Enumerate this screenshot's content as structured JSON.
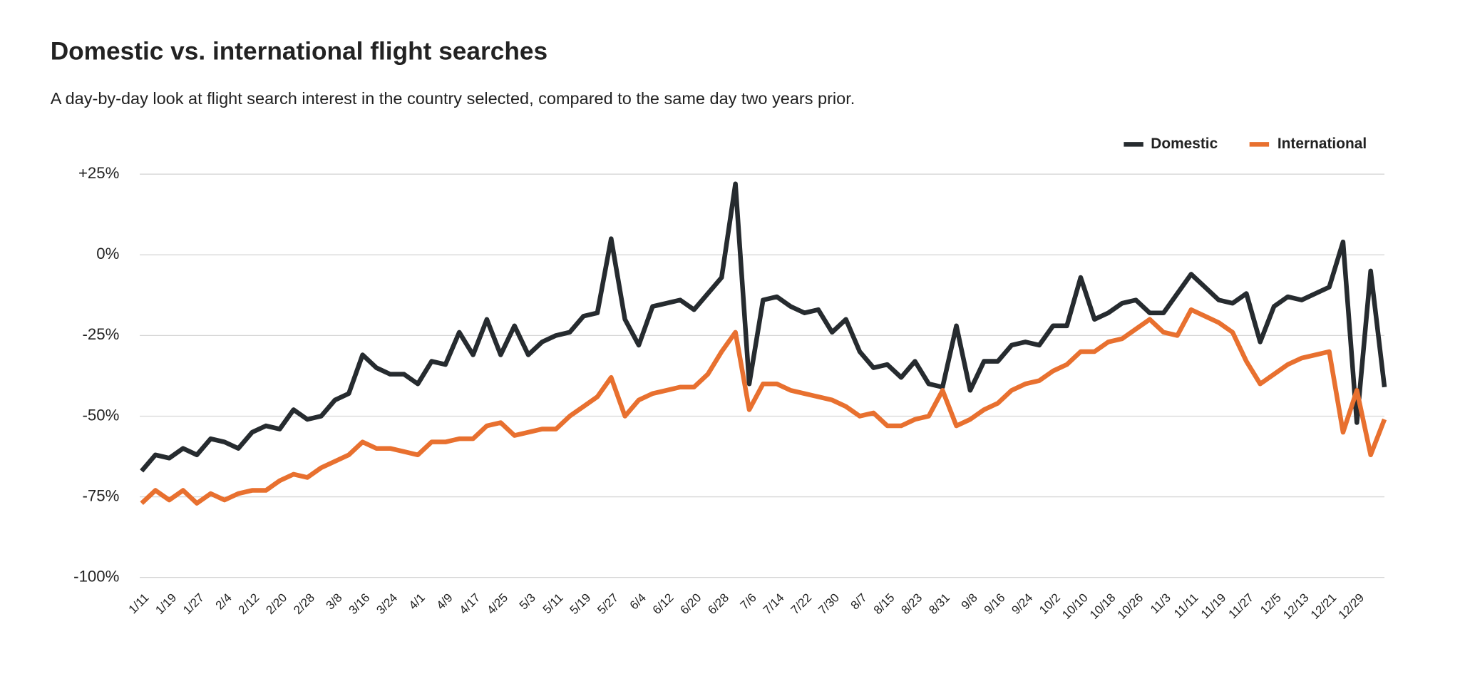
{
  "chart_data": {
    "type": "line",
    "title": "Domestic vs. international flight searches",
    "subtitle": "A day-by-day look at flight search interest in the country selected, compared to the same day two years prior.",
    "categories": [
      "1/11",
      null,
      "1/19",
      null,
      "1/27",
      null,
      "2/4",
      null,
      "2/12",
      null,
      "2/20",
      null,
      "2/28",
      null,
      "3/8",
      null,
      "3/16",
      null,
      "3/24",
      null,
      "4/1",
      null,
      "4/9",
      null,
      "4/17",
      null,
      "4/25",
      null,
      "5/3",
      null,
      "5/11",
      null,
      "5/19",
      null,
      "5/27",
      null,
      "6/4",
      null,
      "6/12",
      null,
      "6/20",
      null,
      "6/28",
      null,
      "7/6",
      null,
      "7/14",
      null,
      "7/22",
      null,
      "7/30",
      null,
      "8/7",
      null,
      "8/15",
      null,
      "8/23",
      null,
      "8/31",
      null,
      "9/8",
      null,
      "9/16",
      null,
      "9/24",
      null,
      "10/2",
      null,
      "10/10",
      null,
      "10/18",
      null,
      "10/26",
      null,
      "11/3",
      null,
      "11/11",
      null,
      "11/19",
      null,
      "11/27",
      null,
      "12/5",
      null,
      "12/13",
      null,
      "12/21",
      null,
      "12/29",
      null,
      null
    ],
    "series": [
      {
        "name": "Domestic",
        "color": "#262b2f",
        "values": [
          -67,
          -62,
          -63,
          -60,
          -62,
          -57,
          -58,
          -60,
          -55,
          -53,
          -54,
          -48,
          -51,
          -50,
          -45,
          -43,
          -31,
          -35,
          -37,
          -37,
          -40,
          -33,
          -34,
          -24,
          -31,
          -20,
          -31,
          -22,
          -31,
          -27,
          -25,
          -24,
          -19,
          -18,
          5,
          -20,
          -28,
          -16,
          -15,
          -14,
          -17,
          -12,
          -7,
          22,
          -40,
          -14,
          -13,
          -16,
          -18,
          -17,
          -24,
          -20,
          -30,
          -35,
          -34,
          -38,
          -33,
          -40,
          -41,
          -22,
          -42,
          -33,
          -33,
          -28,
          -27,
          -28,
          -22,
          -22,
          -7,
          -20,
          -18,
          -15,
          -14,
          -18,
          -18,
          -12,
          -6,
          -10,
          -14,
          -15,
          -12,
          -27,
          -16,
          -13,
          -14,
          -12,
          -10,
          4,
          -52,
          -5,
          -41
        ]
      },
      {
        "name": "International",
        "color": "#e8702f",
        "values": [
          -77,
          -73,
          -76,
          -73,
          -77,
          -74,
          -76,
          -74,
          -73,
          -73,
          -70,
          -68,
          -69,
          -66,
          -64,
          -62,
          -58,
          -60,
          -60,
          -61,
          -62,
          -58,
          -58,
          -57,
          -57,
          -53,
          -52,
          -56,
          -55,
          -54,
          -54,
          -50,
          -47,
          -44,
          -38,
          -50,
          -45,
          -43,
          -42,
          -41,
          -41,
          -37,
          -30,
          -24,
          -48,
          -40,
          -40,
          -42,
          -43,
          -44,
          -45,
          -47,
          -50,
          -49,
          -53,
          -53,
          -51,
          -50,
          -42,
          -53,
          -51,
          -48,
          -46,
          -42,
          -40,
          -39,
          -36,
          -34,
          -30,
          -30,
          -27,
          -26,
          -23,
          -20,
          -24,
          -25,
          -17,
          -19,
          -21,
          -24,
          -33,
          -40,
          -37,
          -34,
          -32,
          -31,
          -30,
          -55,
          -42,
          -62,
          -51
        ]
      }
    ],
    "ylim": [
      -100,
      25
    ],
    "yticks": [
      {
        "value": 25,
        "label": "+25%"
      },
      {
        "value": 0,
        "label": "0%"
      },
      {
        "value": -25,
        "label": "-25%"
      },
      {
        "value": -50,
        "label": "-50%"
      },
      {
        "value": -75,
        "label": "-75%"
      },
      {
        "value": -100,
        "label": "-100%"
      }
    ],
    "grid": true,
    "legend": "top-right"
  }
}
